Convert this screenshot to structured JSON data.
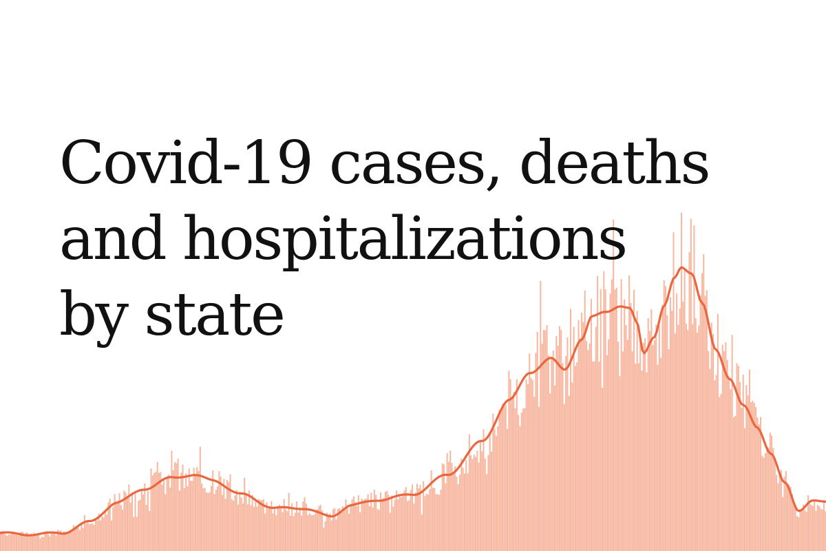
{
  "headline": {
    "lines": [
      "Covid-19 cases, deaths",
      "and hospitalizations",
      "by state"
    ]
  },
  "colors": {
    "bar": "#f7b7a0",
    "line": "#e8673e",
    "background": "#ffffff",
    "text": "#111111"
  },
  "chart_data": {
    "type": "bar",
    "description_of_series": "daily values with a 7-day rolling average line",
    "xlabel": "",
    "ylabel": "",
    "grid": false,
    "legend": "none",
    "ylim": [
      0,
      100
    ],
    "trend_keyframes": [
      [
        0,
        4
      ],
      [
        40,
        3.5
      ],
      [
        90,
        4
      ],
      [
        130,
        8
      ],
      [
        170,
        15
      ],
      [
        210,
        20
      ],
      [
        250,
        24
      ],
      [
        280,
        25
      ],
      [
        310,
        23
      ],
      [
        350,
        18
      ],
      [
        400,
        13
      ],
      [
        440,
        13
      ],
      [
        480,
        10
      ],
      [
        510,
        14
      ],
      [
        550,
        16
      ],
      [
        600,
        18
      ],
      [
        650,
        25
      ],
      [
        700,
        37
      ],
      [
        740,
        52
      ],
      [
        770,
        62
      ],
      [
        800,
        67
      ],
      [
        820,
        63
      ],
      [
        845,
        74
      ],
      [
        860,
        82
      ],
      [
        880,
        84
      ],
      [
        900,
        86
      ],
      [
        915,
        85
      ],
      [
        925,
        80
      ],
      [
        935,
        69
      ],
      [
        950,
        75
      ],
      [
        965,
        86
      ],
      [
        980,
        96
      ],
      [
        990,
        100
      ],
      [
        1005,
        98
      ],
      [
        1020,
        87
      ],
      [
        1040,
        70
      ],
      [
        1060,
        60
      ],
      [
        1080,
        50
      ],
      [
        1100,
        42
      ],
      [
        1120,
        33
      ],
      [
        1140,
        22
      ],
      [
        1160,
        12
      ],
      [
        1180,
        16
      ],
      [
        1200,
        15
      ]
    ]
  }
}
